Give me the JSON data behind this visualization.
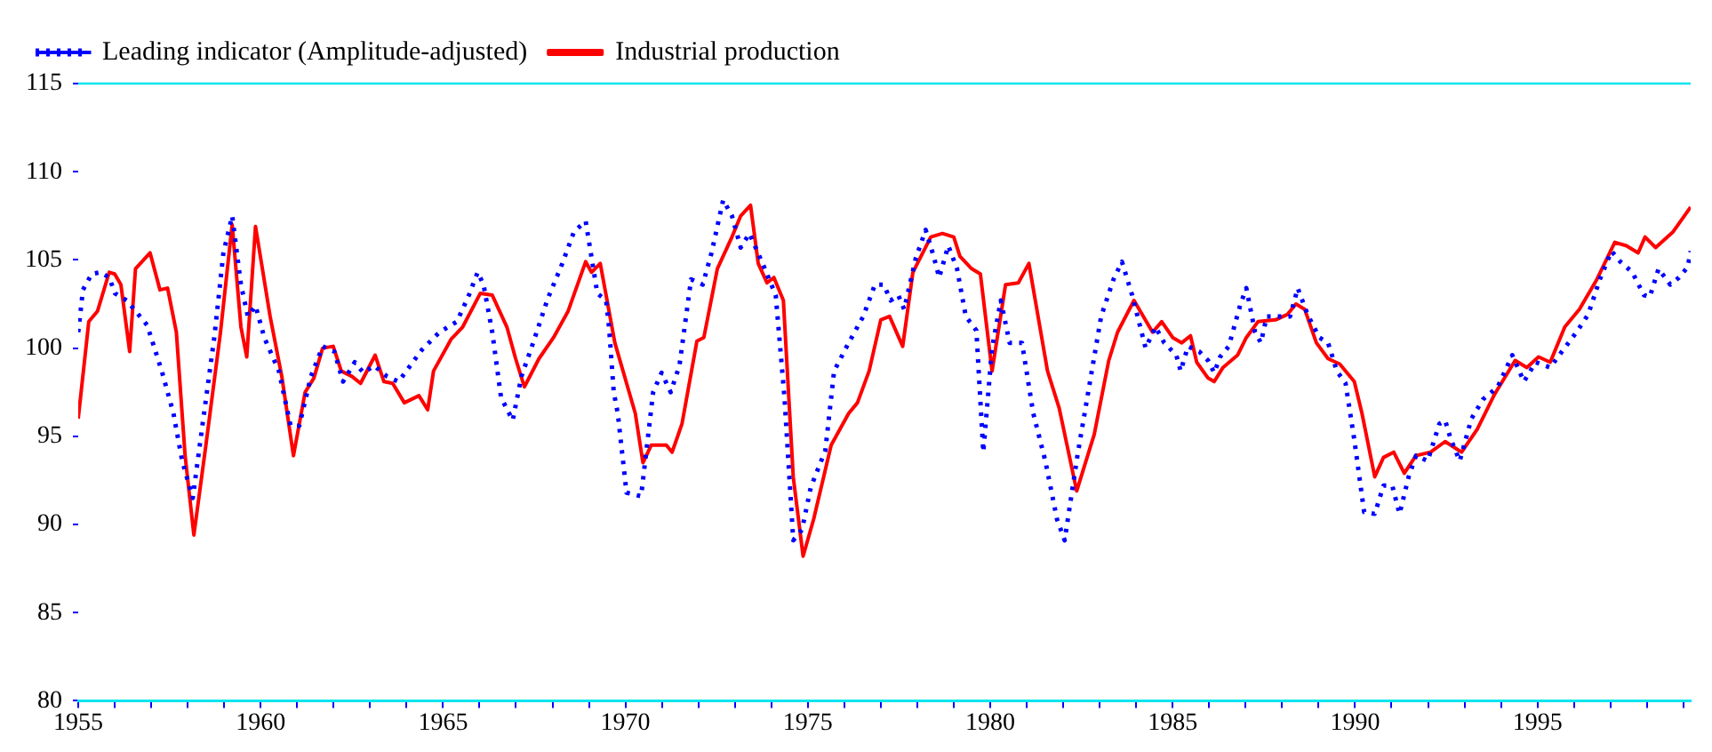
{
  "chart_data": {
    "type": "line",
    "xlim": [
      1955,
      1999.2
    ],
    "ylim": [
      80,
      115
    ],
    "yticks": [
      80,
      85,
      90,
      95,
      100,
      105,
      110,
      115
    ],
    "xticks": [
      {
        "value": 1955,
        "label": "1955"
      },
      {
        "value": 1956,
        "label": null
      },
      {
        "value": 1957,
        "label": null
      },
      {
        "value": 1958,
        "label": null
      },
      {
        "value": 1959,
        "label": null
      },
      {
        "value": 1960,
        "label": "1960"
      },
      {
        "value": 1961,
        "label": null
      },
      {
        "value": 1962,
        "label": null
      },
      {
        "value": 1963,
        "label": null
      },
      {
        "value": 1964,
        "label": null
      },
      {
        "value": 1965,
        "label": "1965"
      },
      {
        "value": 1966,
        "label": null
      },
      {
        "value": 1967,
        "label": null
      },
      {
        "value": 1968,
        "label": null
      },
      {
        "value": 1969,
        "label": null
      },
      {
        "value": 1970,
        "label": "1970"
      },
      {
        "value": 1971,
        "label": null
      },
      {
        "value": 1972,
        "label": null
      },
      {
        "value": 1973,
        "label": null
      },
      {
        "value": 1974,
        "label": null
      },
      {
        "value": 1975,
        "label": "1975"
      },
      {
        "value": 1976,
        "label": null
      },
      {
        "value": 1977,
        "label": null
      },
      {
        "value": 1978,
        "label": null
      },
      {
        "value": 1979,
        "label": null
      },
      {
        "value": 1980,
        "label": "1980"
      },
      {
        "value": 1981,
        "label": null
      },
      {
        "value": 1982,
        "label": null
      },
      {
        "value": 1983,
        "label": null
      },
      {
        "value": 1984,
        "label": null
      },
      {
        "value": 1985,
        "label": "1985"
      },
      {
        "value": 1986,
        "label": null
      },
      {
        "value": 1987,
        "label": null
      },
      {
        "value": 1988,
        "label": null
      },
      {
        "value": 1989,
        "label": null
      },
      {
        "value": 1990,
        "label": "1990"
      },
      {
        "value": 1991,
        "label": null
      },
      {
        "value": 1992,
        "label": null
      },
      {
        "value": 1993,
        "label": null
      },
      {
        "value": 1994,
        "label": null
      },
      {
        "value": 1995,
        "label": "1995"
      },
      {
        "value": 1996,
        "label": null
      },
      {
        "value": 1997,
        "label": null
      },
      {
        "value": 1998,
        "label": null
      },
      {
        "value": 1999,
        "label": null
      }
    ],
    "grid": false,
    "legend": "top",
    "marker": "none",
    "series": [
      {
        "name": "Leading indicator (Amplitude-adjusted)",
        "color": "#0000ff",
        "line_style": "dotted",
        "x": [
          1955.0,
          1955.13,
          1955.37,
          1955.61,
          1955.85,
          1956.01,
          1956.33,
          1956.57,
          1956.89,
          1957.29,
          1957.61,
          1957.85,
          1958.14,
          1958.41,
          1958.73,
          1958.98,
          1959.22,
          1959.46,
          1959.65,
          1959.86,
          1960.1,
          1960.5,
          1960.82,
          1961.06,
          1961.38,
          1961.7,
          1962.02,
          1962.26,
          1962.58,
          1962.82,
          1963.11,
          1963.46,
          1963.78,
          1964.1,
          1964.42,
          1964.9,
          1965.38,
          1965.71,
          1965.95,
          1966.11,
          1966.35,
          1966.59,
          1966.91,
          1967.15,
          1967.47,
          1967.87,
          1968.27,
          1968.59,
          1968.91,
          1969.23,
          1969.47,
          1969.55,
          1969.68,
          1969.79,
          1970.03,
          1970.43,
          1970.76,
          1970.99,
          1971.24,
          1971.48,
          1971.8,
          1972.12,
          1972.36,
          1972.68,
          1972.92,
          1973.16,
          1973.4,
          1973.8,
          1974.12,
          1974.36,
          1974.6,
          1974.84,
          1975.08,
          1975.48,
          1975.72,
          1976.12,
          1976.52,
          1976.84,
          1977.08,
          1977.27,
          1977.48,
          1977.64,
          1977.96,
          1978.23,
          1978.45,
          1978.6,
          1978.85,
          1979.09,
          1979.33,
          1979.62,
          1979.81,
          1980.05,
          1980.29,
          1980.53,
          1980.87,
          1981.18,
          1981.51,
          1981.83,
          1982.04,
          1982.39,
          1982.71,
          1983.04,
          1983.38,
          1983.61,
          1983.89,
          1984.26,
          1984.53,
          1984.77,
          1985.1,
          1985.22,
          1985.42,
          1985.73,
          1985.97,
          1986.14,
          1986.3,
          1986.54,
          1986.86,
          1987.02,
          1987.26,
          1987.42,
          1987.58,
          1987.98,
          1988.22,
          1988.43,
          1988.7,
          1989.02,
          1989.26,
          1989.5,
          1989.74,
          1989.98,
          1990.25,
          1990.54,
          1990.78,
          1991.02,
          1991.22,
          1991.47,
          1991.67,
          1991.99,
          1992.31,
          1992.47,
          1992.63,
          1992.87,
          1993.19,
          1993.51,
          1993.91,
          1994.31,
          1994.63,
          1994.95,
          1995.35,
          1995.67,
          1996.07,
          1996.39,
          1996.71,
          1997.03,
          1997.27,
          1997.6,
          1997.92,
          1998.08,
          1998.32,
          1998.64,
          1998.88,
          1999.12,
          1999.2
        ],
        "values": [
          100.9,
          103.3,
          104.2,
          104.3,
          104.0,
          103.1,
          102.7,
          102.1,
          101.3,
          98.7,
          96.3,
          93.6,
          91.5,
          95.7,
          100.6,
          105.4,
          107.5,
          103.6,
          101.8,
          102.4,
          100.6,
          98.7,
          95.6,
          95.6,
          98.4,
          100.1,
          99.8,
          98.1,
          99.2,
          98.6,
          99.0,
          98.4,
          98.1,
          99.0,
          99.9,
          100.9,
          101.5,
          103.0,
          104.3,
          103.6,
          100.9,
          97.2,
          95.9,
          98.4,
          100.3,
          102.8,
          104.8,
          106.6,
          107.2,
          103.1,
          102.7,
          101.2,
          97.5,
          96.3,
          91.8,
          91.6,
          97.5,
          98.6,
          97.5,
          99.0,
          103.9,
          103.6,
          105.4,
          108.4,
          107.5,
          105.7,
          106.5,
          104.6,
          103.0,
          97.2,
          89.1,
          89.7,
          92.1,
          94.2,
          98.7,
          100.3,
          101.8,
          103.6,
          103.6,
          102.7,
          103.0,
          102.2,
          105.1,
          106.7,
          105.2,
          104.0,
          105.8,
          104.5,
          101.8,
          101.0,
          94.1,
          100.0,
          102.7,
          100.3,
          100.3,
          96.3,
          93.6,
          90.3,
          89.1,
          93.9,
          97.8,
          101.8,
          103.9,
          104.9,
          103.0,
          100.0,
          101.2,
          100.3,
          99.6,
          98.7,
          100.1,
          99.8,
          99.3,
          98.6,
          99.5,
          100.1,
          102.5,
          103.4,
          100.9,
          100.3,
          101.8,
          101.8,
          101.8,
          103.4,
          101.9,
          100.6,
          100.3,
          98.7,
          98.0,
          94.8,
          90.7,
          90.6,
          92.2,
          92.2,
          90.6,
          92.7,
          93.9,
          93.6,
          95.7,
          95.9,
          94.8,
          93.6,
          96.0,
          97.1,
          97.8,
          99.6,
          98.1,
          99.2,
          98.9,
          99.8,
          100.9,
          101.9,
          103.9,
          105.5,
          104.9,
          104.3,
          103.0,
          102.9,
          104.5,
          103.6,
          104.0,
          104.6,
          105.5
        ]
      },
      {
        "name": "Industrial production",
        "color": "#ff0000",
        "line_style": "solid",
        "x": [
          1955.0,
          1955.29,
          1955.53,
          1955.85,
          1956.0,
          1956.17,
          1956.41,
          1956.57,
          1956.97,
          1957.24,
          1957.45,
          1957.69,
          1957.93,
          1958.17,
          1958.5,
          1958.9,
          1959.22,
          1959.46,
          1959.62,
          1959.86,
          1960.26,
          1960.58,
          1960.9,
          1961.22,
          1961.46,
          1961.7,
          1961.99,
          1962.21,
          1962.5,
          1962.74,
          1963.14,
          1963.38,
          1963.62,
          1963.94,
          1964.34,
          1964.58,
          1964.74,
          1965.22,
          1965.54,
          1966.02,
          1966.35,
          1966.75,
          1966.99,
          1967.23,
          1967.63,
          1968.03,
          1968.43,
          1968.91,
          1969.07,
          1969.31,
          1969.71,
          1970.27,
          1970.48,
          1970.71,
          1971.12,
          1971.28,
          1971.55,
          1971.96,
          1972.15,
          1972.52,
          1972.92,
          1973.16,
          1973.43,
          1973.64,
          1973.88,
          1974.07,
          1974.33,
          1974.6,
          1974.87,
          1975.16,
          1975.64,
          1976.12,
          1976.36,
          1976.68,
          1977.0,
          1977.24,
          1977.6,
          1977.88,
          1978.37,
          1978.69,
          1979.0,
          1979.17,
          1979.49,
          1979.73,
          1980.05,
          1980.42,
          1980.77,
          1981.06,
          1981.57,
          1981.89,
          1982.37,
          1982.85,
          1983.25,
          1983.49,
          1983.94,
          1984.45,
          1984.7,
          1985.0,
          1985.25,
          1985.49,
          1985.66,
          1985.97,
          1986.14,
          1986.38,
          1986.78,
          1987.02,
          1987.34,
          1987.82,
          1988.14,
          1988.38,
          1988.62,
          1988.94,
          1989.26,
          1989.58,
          1989.98,
          1990.19,
          1990.54,
          1990.78,
          1991.06,
          1991.35,
          1991.67,
          1992.07,
          1992.47,
          1992.92,
          1993.35,
          1993.83,
          1994.39,
          1994.71,
          1995.03,
          1995.35,
          1995.75,
          1996.15,
          1996.63,
          1997.12,
          1997.44,
          1997.76,
          1997.95,
          1998.24,
          1998.72,
          1999.2
        ],
        "values": [
          96.0,
          101.5,
          102.1,
          104.3,
          104.2,
          103.6,
          99.8,
          104.5,
          105.4,
          103.3,
          103.4,
          100.9,
          93.9,
          89.4,
          94.5,
          100.9,
          107.0,
          101.2,
          99.5,
          106.9,
          101.8,
          98.4,
          93.9,
          97.5,
          98.3,
          100.0,
          100.1,
          98.7,
          98.4,
          98.0,
          99.6,
          98.1,
          98.0,
          96.9,
          97.3,
          96.5,
          98.7,
          100.5,
          101.2,
          103.1,
          103.0,
          101.2,
          99.4,
          97.8,
          99.4,
          100.6,
          102.1,
          104.9,
          104.3,
          104.8,
          100.3,
          96.3,
          93.5,
          94.5,
          94.5,
          94.1,
          95.7,
          100.4,
          100.6,
          104.5,
          106.3,
          107.5,
          108.1,
          104.8,
          103.7,
          104.0,
          102.7,
          92.7,
          88.2,
          90.3,
          94.5,
          96.3,
          96.9,
          98.7,
          101.6,
          101.8,
          100.1,
          104.3,
          106.3,
          106.5,
          106.3,
          105.2,
          104.5,
          104.2,
          98.7,
          103.6,
          103.7,
          104.8,
          98.7,
          96.6,
          91.9,
          95.1,
          99.3,
          100.9,
          102.7,
          100.9,
          101.5,
          100.6,
          100.3,
          100.7,
          99.2,
          98.3,
          98.1,
          98.9,
          99.6,
          100.6,
          101.5,
          101.6,
          101.9,
          102.5,
          102.2,
          100.3,
          99.4,
          99.1,
          98.1,
          96.3,
          92.7,
          93.8,
          94.1,
          92.9,
          93.9,
          94.1,
          94.7,
          94.1,
          95.4,
          97.4,
          99.3,
          98.9,
          99.5,
          99.2,
          101.2,
          102.2,
          103.9,
          106.0,
          105.8,
          105.4,
          106.3,
          105.7,
          106.6,
          108.0
        ]
      }
    ]
  }
}
